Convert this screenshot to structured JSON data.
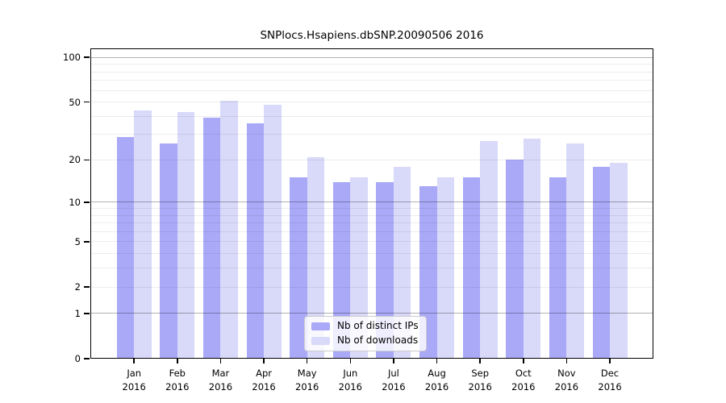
{
  "chart_data": {
    "type": "bar",
    "title": "SNPlocs.Hsapiens.dbSNP.20090506 2016",
    "categories": [
      "Jan",
      "Feb",
      "Mar",
      "Apr",
      "May",
      "Jun",
      "Jul",
      "Aug",
      "Sep",
      "Oct",
      "Nov",
      "Dec"
    ],
    "x_sub_label": "2016",
    "series": [
      {
        "name": "Nb of distinct IPs",
        "color": "#a9a9f8",
        "values": [
          29,
          26,
          39,
          36,
          15,
          14,
          14,
          13,
          15,
          20,
          15,
          18
        ]
      },
      {
        "name": "Nb of downloads",
        "color": "#d9d9f9",
        "values": [
          44,
          43,
          51,
          48,
          21,
          15,
          18,
          15,
          27,
          28,
          26,
          19
        ]
      }
    ],
    "y_ticks": [
      0,
      1,
      2,
      5,
      10,
      20,
      50,
      100
    ],
    "y_scale": "log1p",
    "y_range": [
      0,
      115
    ],
    "grid": "on",
    "legend_position": "bottom-center",
    "colors": {
      "major_grid": "#b3b3b3",
      "minor_grid": "#ededed",
      "axis": "#000000"
    }
  }
}
